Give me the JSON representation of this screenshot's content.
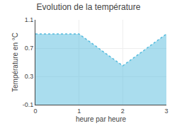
{
  "chart_data": {
    "type": "area",
    "title": "Evolution de la température",
    "x_label": "heure par heure",
    "y_label": "Température en °C",
    "x": [
      0,
      1,
      2,
      3
    ],
    "values": [
      0.9,
      0.9,
      0.45,
      0.9
    ],
    "color": "#55bbdd",
    "line_style": "dotted",
    "xlim": [
      0,
      3
    ],
    "xticks": [
      0,
      1,
      2,
      3
    ],
    "ylim": [
      -0.1,
      1.1
    ],
    "yticks": [
      -0.1,
      0.3,
      0.7,
      1.1
    ],
    "grid": true
  }
}
